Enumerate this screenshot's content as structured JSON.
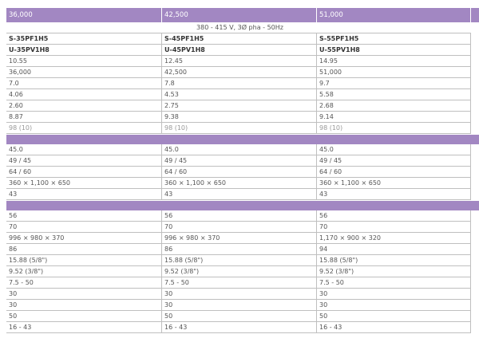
{
  "header": [
    "36,000",
    "42,500",
    "51,000"
  ],
  "power_supply": "380 - 415 V, 3Ø pha - 50Hz",
  "sections": [
    {
      "rows": [
        [
          "S-35PF1H5",
          "S-45PF1H5",
          "S-55PF1H5"
        ],
        [
          "U-35PV1H8",
          "U-45PV1H8",
          "U-55PV1H8"
        ],
        [
          "10.55",
          "12.45",
          "14.95"
        ],
        [
          "36,000",
          "42,500",
          "51,000"
        ],
        [
          "7.0",
          "7.8",
          "9.7"
        ],
        [
          "4.06",
          "4.53",
          "5.58"
        ],
        [
          "2.60",
          "2.75",
          "2.68"
        ],
        [
          "8.87",
          "9.38",
          "9.14"
        ],
        [
          "98 (10)",
          "98 (10)",
          "98 (10)"
        ]
      ]
    },
    {
      "rows": [
        [
          "45.0",
          "45.0",
          "45.0"
        ],
        [
          "49 / 45",
          "49 / 45",
          "49 / 45"
        ],
        [
          "64 / 60",
          "64 / 60",
          "64 / 60"
        ],
        [
          "360 × 1,100 × 650",
          "360 × 1,100 × 650",
          "360 × 1,100 × 650"
        ],
        [
          "43",
          "43",
          "43"
        ]
      ]
    },
    {
      "rows": [
        [
          "56",
          "56",
          "56"
        ],
        [
          "70",
          "70",
          "70"
        ],
        [
          "996 × 980 × 370",
          "996 × 980 × 370",
          "1,170 × 900 × 320"
        ],
        [
          "86",
          "86",
          "94"
        ],
        [
          "15.88 (5/8\")",
          "15.88 (5/8\")",
          "15.88 (5/8\")"
        ],
        [
          "9.52 (3/8\")",
          "9.52 (3/8\")",
          "9.52 (3/8\")"
        ],
        [
          "7.5 - 50",
          "7.5 - 50",
          "7.5 - 50"
        ],
        [
          "30",
          "30",
          "30"
        ],
        [
          "30",
          "30",
          "30"
        ],
        [
          "50",
          "50",
          "50"
        ],
        [
          "16 - 43",
          "16 - 43",
          "16 - 43"
        ]
      ]
    }
  ]
}
